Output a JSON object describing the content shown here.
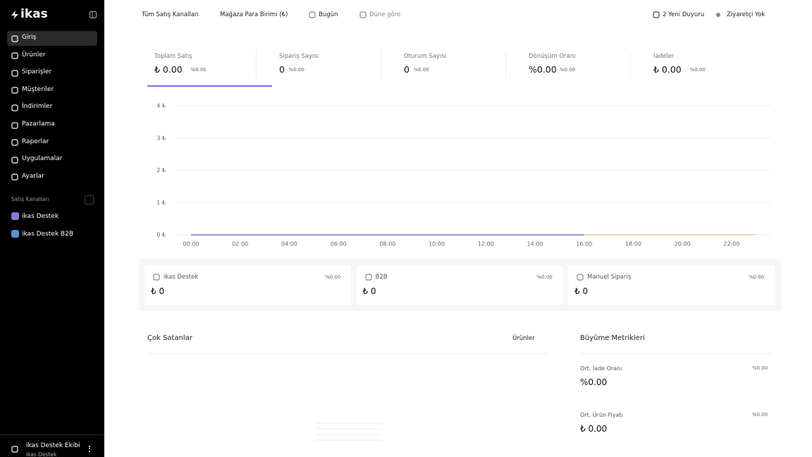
{
  "sidebar": {
    "logo": "ikas",
    "nav": [
      "Giriş",
      "Ürünler",
      "Siparişler",
      "Müşteriler",
      "İndirimler",
      "Pazarlama",
      "Raporlar",
      "Uygulamalar",
      "Ayarlar"
    ],
    "channels_title": "Satış Kanalları",
    "channels": [
      "ikas Destek",
      "ikas Destek B2B"
    ],
    "user": {
      "name": "ikas Destek Ekibi",
      "org": "ikas Destek"
    }
  },
  "topbar": {
    "filters": [
      "Tüm Satış Kanalları",
      "Mağaza Para Birimi (₺)",
      "Bugün",
      "Düne göre"
    ],
    "announcements": "2 Yeni Duyuru",
    "visitors": "Ziyaretçi Yok"
  },
  "kpis": [
    {
      "label": "Toplam Satış",
      "value": "₺ 0.00",
      "change": "%0.00"
    },
    {
      "label": "Sipariş Sayısı",
      "value": "0",
      "change": "%0.00"
    },
    {
      "label": "Oturum Sayısı",
      "value": "0",
      "change": "%0.00"
    },
    {
      "label": "Dönüşüm Oranı",
      "value": "%0.00",
      "change": "%0.00"
    },
    {
      "label": "İadeler",
      "value": "₺ 0.00",
      "change": "%0.00"
    }
  ],
  "chart": {
    "type": "line",
    "x": [
      "00:00",
      null,
      "02:00",
      null,
      "04:00",
      null,
      "06:00",
      null,
      "08:00",
      null,
      "10:00",
      null,
      "12:00",
      null,
      "14:00",
      null,
      "16:00",
      null,
      "18:00",
      null,
      "20:00",
      null,
      "22:00",
      null
    ],
    "series": [
      {
        "color": "#7b72d9",
        "values": [
          0,
          0,
          0,
          0,
          0,
          0,
          0,
          0,
          0,
          0,
          0,
          0,
          0,
          0,
          0,
          0,
          0,
          null,
          null,
          null,
          null,
          null,
          null,
          null
        ]
      },
      {
        "color": "#f5c98a",
        "values": [
          null,
          null,
          null,
          null,
          null,
          null,
          null,
          null,
          null,
          null,
          null,
          null,
          null,
          null,
          null,
          null,
          0,
          0,
          0,
          0,
          0,
          0,
          0,
          0
        ]
      }
    ],
    "ylim": [
      0,
      4
    ],
    "yticks": [
      {
        "value": 0,
        "label": "0 ₺"
      },
      {
        "value": 1,
        "label": "1 ₺"
      },
      {
        "value": 2,
        "label": "2 ₺"
      },
      {
        "value": 3,
        "label": "3 ₺"
      },
      {
        "value": 4,
        "label": "4 ₺"
      }
    ],
    "grid": true
  },
  "channel_cards": [
    {
      "name": "ikas Destek",
      "change": "%0.00",
      "value": "₺ 0"
    },
    {
      "name": "B2B",
      "change": "%0.00",
      "value": "₺ 0"
    },
    {
      "name": "Manuel Sipariş",
      "change": "%0.00",
      "value": "₺ 0"
    }
  ],
  "best_sellers": {
    "title": "Çok Satanlar",
    "filter": "Ürünler"
  },
  "growth": {
    "title": "Büyüme Metrikleri",
    "items": [
      {
        "label": "Ort. İade Oranı",
        "change": "%0.00",
        "value": "%0.00"
      },
      {
        "label": "Ort. Ürün Fiyatı",
        "change": "%0.00",
        "value": "₺ 0.00"
      }
    ]
  }
}
